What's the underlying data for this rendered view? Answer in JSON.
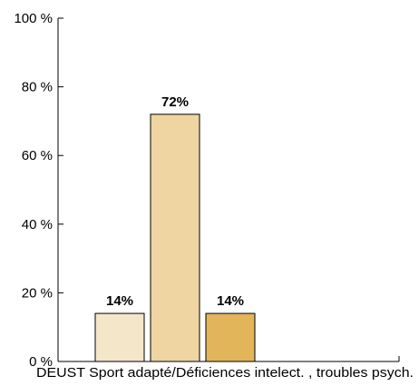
{
  "chart_data": {
    "type": "bar",
    "categories": [
      "DEUST Sport adapté/Déficiences intelect. , troubles psych."
    ],
    "series": [
      {
        "values": [
          14
        ],
        "color": "#f4e6c8",
        "label": "14%"
      },
      {
        "values": [
          72
        ],
        "color": "#eed5a1",
        "label": "72%"
      },
      {
        "values": [
          14
        ],
        "color": "#e2b55a",
        "label": "14%"
      }
    ],
    "ylim": [
      0,
      100
    ],
    "yticks": [
      {
        "value": 0,
        "label": "0 %"
      },
      {
        "value": 20,
        "label": "20 %"
      },
      {
        "value": 40,
        "label": "40 %"
      },
      {
        "value": 60,
        "label": "60 %"
      },
      {
        "value": 80,
        "label": "80 %"
      },
      {
        "value": 100,
        "label": "100 %"
      }
    ],
    "grid": false,
    "legend": "none"
  }
}
